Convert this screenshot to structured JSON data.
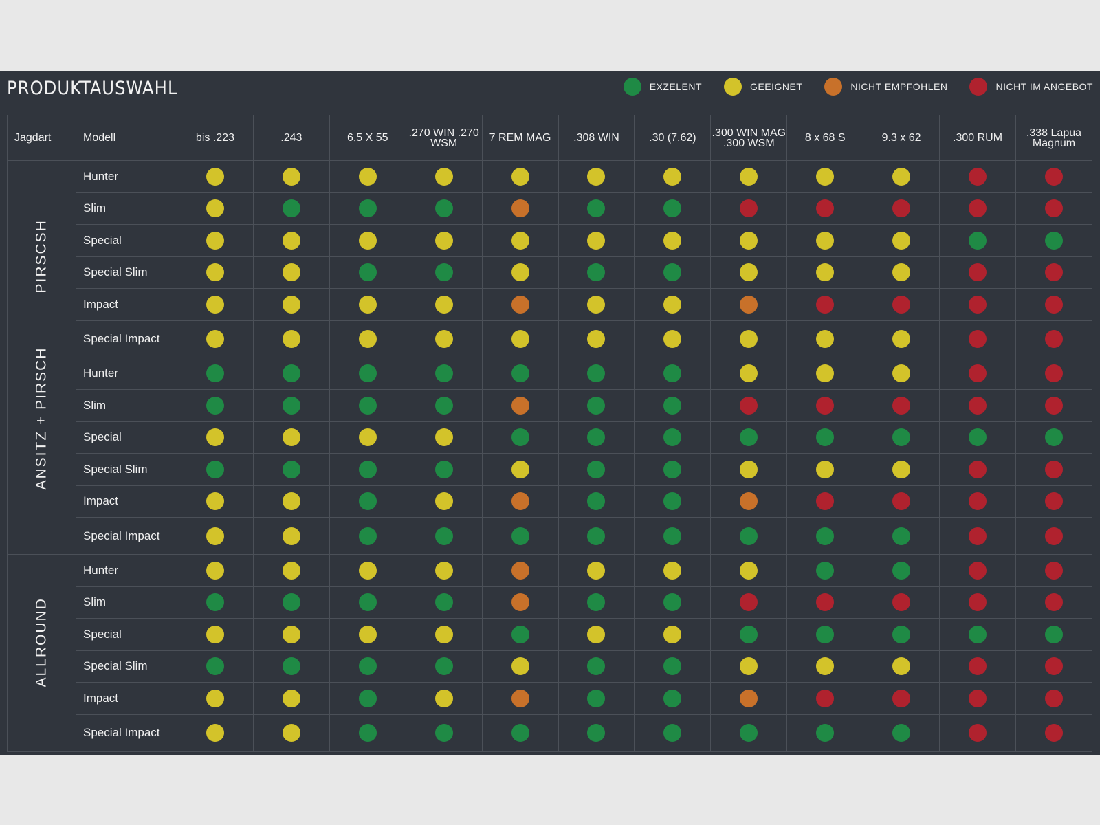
{
  "title": "PRODUKTAUSWAHL",
  "colors": {
    "G": "#1f8a45",
    "Y": "#d3c32a",
    "O": "#c8712a",
    "R": "#b0222e"
  },
  "legend": [
    {
      "code": "G",
      "label": "EXZELENT"
    },
    {
      "code": "Y",
      "label": "GEEIGNET"
    },
    {
      "code": "O",
      "label": "NICHT EMPFOHLEN"
    },
    {
      "code": "R",
      "label": "NICHT IM ANGEBOT"
    }
  ],
  "headers": {
    "jagdart": "Jagdart",
    "modell": "Modell",
    "calibers": [
      "bis .223",
      ".243",
      "6,5 X 55",
      ".270 WIN .270 WSM",
      "7 REM MAG",
      ".308 WIN",
      ".30 (7.62)",
      ".300 WIN MAG .300 WSM",
      "8 x 68 S",
      "9.3 x 62",
      ".300 RUM",
      ".338 Lapua Magnum"
    ]
  },
  "groups": [
    {
      "name": "PIRSCSH",
      "rows": [
        {
          "model": "Hunter",
          "ratings": "YYYYYYYYYYRR"
        },
        {
          "model": "Slim",
          "ratings": "YGGGOGGRRRRR"
        },
        {
          "model": "Special",
          "ratings": "YYYYYYYYYYGG"
        },
        {
          "model": "Special Slim",
          "ratings": "YYGGYGGYYYRR"
        },
        {
          "model": "Impact",
          "ratings": "YYYYOYYORRRR"
        },
        {
          "model": "Special Impact",
          "ratings": "YYYYYYYYYYRR"
        }
      ]
    },
    {
      "name": "ANSITZ + PIRSCH",
      "rows": [
        {
          "model": "Hunter",
          "ratings": "GGGGGGGYYYRR"
        },
        {
          "model": "Slim",
          "ratings": "GGGGOGGRRRRR"
        },
        {
          "model": "Special",
          "ratings": "YYYYGGGGGGGG"
        },
        {
          "model": "Special Slim",
          "ratings": "GGGGYGGYYYRR"
        },
        {
          "model": "Impact",
          "ratings": "YYGYOGGORRRR"
        },
        {
          "model": "Special Impact",
          "ratings": "YYGGGGGGGGRR"
        }
      ]
    },
    {
      "name": "ALLROUND",
      "rows": [
        {
          "model": "Hunter",
          "ratings": "YYYYOYYYGGRR"
        },
        {
          "model": "Slim",
          "ratings": "GGGGOGGRRRRR"
        },
        {
          "model": "Special",
          "ratings": "YYYYGYYGGGGG"
        },
        {
          "model": "Special Slim",
          "ratings": "GGGGYGGYYYRR"
        },
        {
          "model": "Impact",
          "ratings": "YYGYOGGORRRR"
        },
        {
          "model": "Special Impact",
          "ratings": "YYGGGGGGGGRR"
        }
      ]
    }
  ]
}
